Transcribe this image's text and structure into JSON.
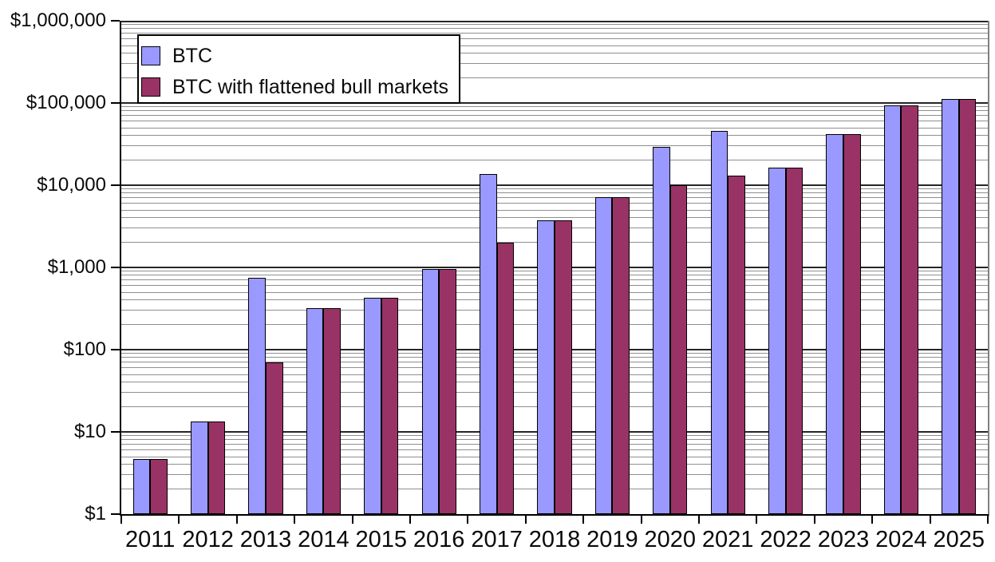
{
  "chart_data": {
    "type": "bar",
    "title": "",
    "y_scale": "log10",
    "y_min": 1,
    "y_max": 1000000,
    "y_tick_labels": [
      "$1",
      "$10",
      "$100",
      "$1,000",
      "$10,000",
      "$100,000",
      "$1,000,000"
    ],
    "categories": [
      "2011",
      "2012",
      "2013",
      "2014",
      "2015",
      "2016",
      "2017",
      "2018",
      "2019",
      "2020",
      "2021",
      "2022",
      "2023",
      "2024",
      "2025"
    ],
    "series": [
      {
        "name": "BTC",
        "color": "#9999FF",
        "values": [
          4.7,
          13.4,
          750,
          320,
          430,
          960,
          13800,
          3700,
          7200,
          29000,
          46000,
          16500,
          42000,
          93500,
          111000
        ]
      },
      {
        "name": "BTC with flattened bull markets",
        "color": "#993366",
        "values": [
          4.7,
          13.4,
          70,
          320,
          430,
          960,
          2000,
          3700,
          7200,
          10000,
          13000,
          16500,
          42000,
          93500,
          111000
        ]
      }
    ],
    "legend_position": "top-left",
    "grid": {
      "major": "horizontal-decades",
      "minor": "horizontal-log-subdivisions"
    }
  },
  "colors": {
    "background": "#ffffff",
    "bar_border": "#000000",
    "major_grid": "#262626",
    "minor_grid": "#8f8f8f",
    "axis": "#000000",
    "right_frame": "#808080",
    "text": "#0a0a0a"
  }
}
